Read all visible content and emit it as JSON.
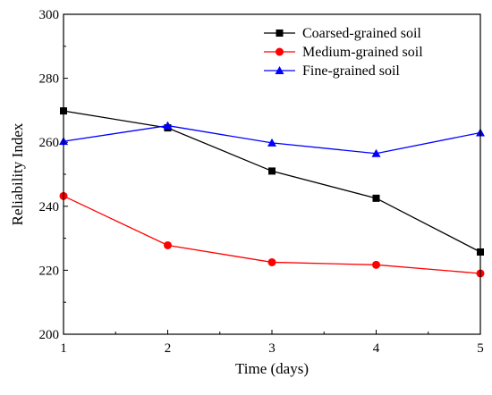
{
  "chart_data": {
    "type": "line",
    "title": "",
    "xlabel": "Time (days)",
    "ylabel": "Reliability Index",
    "x": [
      1,
      2,
      3,
      4,
      5
    ],
    "xlim": [
      1,
      5
    ],
    "ylim": [
      200,
      300
    ],
    "xticks": [
      "1",
      "2",
      "3",
      "4",
      "5"
    ],
    "yticks": [
      "200",
      "220",
      "240",
      "260",
      "280",
      "300"
    ],
    "grid": false,
    "legend_position": "top-right",
    "series": [
      {
        "name": "Coarsed-grained soil",
        "values": [
          269.8,
          264.5,
          251.0,
          242.5,
          225.7
        ],
        "color": "#000000",
        "marker": "square"
      },
      {
        "name": "Medium-grained soil",
        "values": [
          243.2,
          227.8,
          222.5,
          221.7,
          219.0
        ],
        "color": "#ff0000",
        "marker": "circle"
      },
      {
        "name": "Fine-grained soil",
        "values": [
          260.3,
          265.2,
          259.8,
          256.5,
          263.0
        ],
        "color": "#0000ff",
        "marker": "triangle"
      }
    ]
  }
}
